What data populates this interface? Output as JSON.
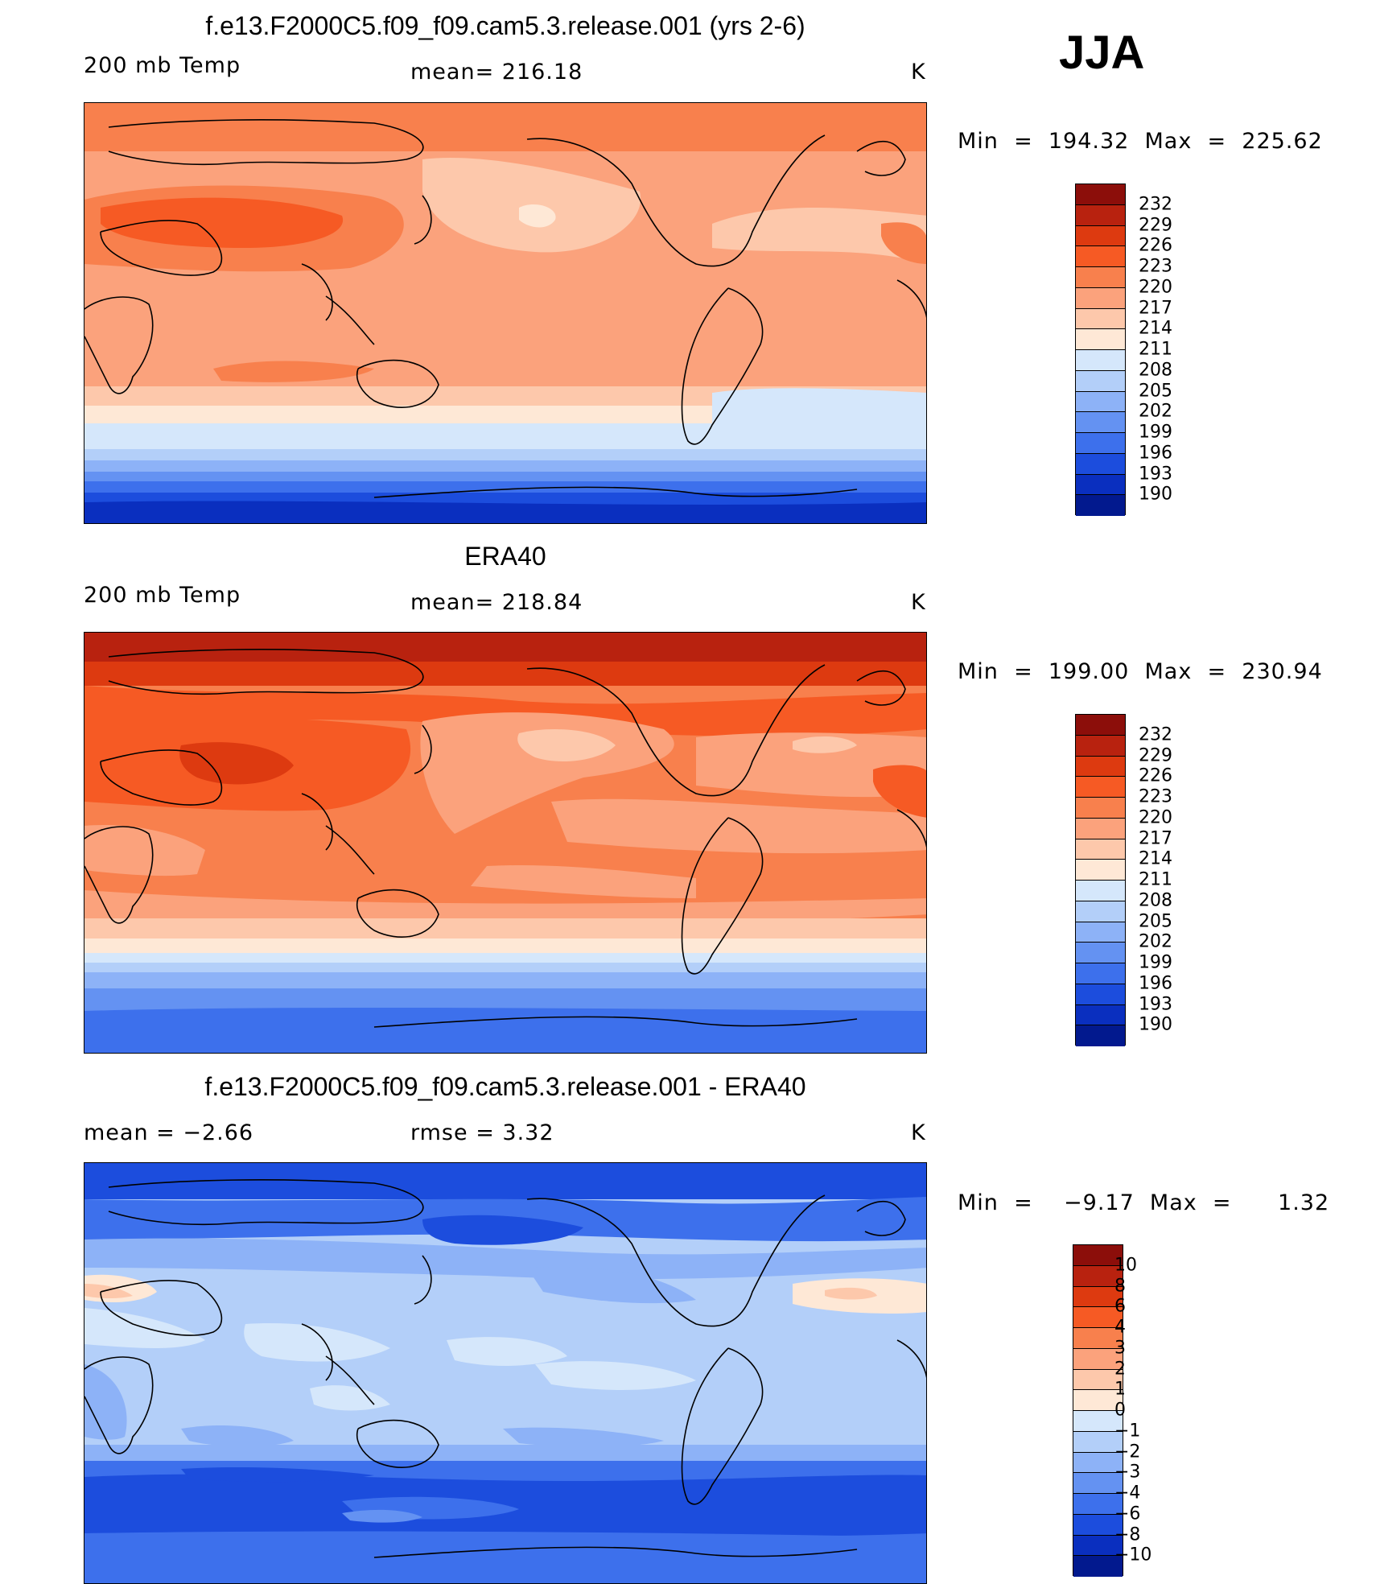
{
  "season_label": "JJA",
  "panels": [
    {
      "title": "f.e13.F2000C5.f09_f09.cam5.3.release.001 (yrs 2-6)",
      "left_label": "200 mb Temp",
      "center_label": "mean= 216.18",
      "right_label": "K",
      "minmax": "Min  =  194.32  Max  =  225.62",
      "colorbar_labels": [
        "232",
        "229",
        "226",
        "223",
        "220",
        "217",
        "214",
        "211",
        "208",
        "205",
        "202",
        "199",
        "196",
        "193",
        "190"
      ]
    },
    {
      "title": "ERA40",
      "left_label": "200 mb Temp",
      "center_label": "mean= 218.84",
      "right_label": "K",
      "minmax": "Min  =  199.00  Max  =  230.94",
      "colorbar_labels": [
        "232",
        "229",
        "226",
        "223",
        "220",
        "217",
        "214",
        "211",
        "208",
        "205",
        "202",
        "199",
        "196",
        "193",
        "190"
      ]
    },
    {
      "title": "f.e13.F2000C5.f09_f09.cam5.3.release.001 - ERA40",
      "left_label": "mean  =    −2.66",
      "center_label": "rmse  =     3.32",
      "right_label": "K",
      "minmax": "Min  =    −9.17  Max  =      1.32",
      "colorbar_labels": [
        "10",
        "8",
        "6",
        "4",
        "3",
        "2",
        "1",
        "0",
        "−1",
        "−2",
        "−3",
        "−4",
        "−6",
        "−8",
        "−10"
      ]
    }
  ],
  "colorbar_palette": [
    "#8c0e0a",
    "#b8220f",
    "#dd3a10",
    "#f65a24",
    "#f8804d",
    "#fba27c",
    "#fdc8ab",
    "#fee8d6",
    "#d5e7fb",
    "#b3cff9",
    "#8db2f7",
    "#6492f2",
    "#3d70ec",
    "#1c4ddd",
    "#0a2fbf",
    "#02198e"
  ],
  "chart_data": [
    {
      "type": "heatmap",
      "title": "f.e13.F2000C5.f09_f09.cam5.3.release.001 (yrs 2-6)",
      "variable": "200 mb Temp",
      "units": "K",
      "mean": 216.18,
      "min": 194.32,
      "max": 225.62,
      "levels": [
        190,
        193,
        196,
        199,
        202,
        205,
        208,
        211,
        214,
        217,
        220,
        223,
        226,
        229,
        232
      ],
      "lat_bands": [
        {
          "lat": 75,
          "value": 224
        },
        {
          "lat": 45,
          "value": 219
        },
        {
          "lat": 30,
          "value": 223
        },
        {
          "lat": 0,
          "value": 220
        },
        {
          "lat": -30,
          "value": 219
        },
        {
          "lat": -45,
          "value": 212
        },
        {
          "lat": -55,
          "value": 206
        },
        {
          "lat": -65,
          "value": 197
        },
        {
          "lat": -80,
          "value": 194
        }
      ]
    },
    {
      "type": "heatmap",
      "title": "ERA40",
      "variable": "200 mb Temp",
      "units": "K",
      "mean": 218.84,
      "min": 199.0,
      "max": 230.94,
      "levels": [
        190,
        193,
        196,
        199,
        202,
        205,
        208,
        211,
        214,
        217,
        220,
        223,
        226,
        229,
        232
      ],
      "lat_bands": [
        {
          "lat": 80,
          "value": 230
        },
        {
          "lat": 60,
          "value": 226
        },
        {
          "lat": 45,
          "value": 221
        },
        {
          "lat": 30,
          "value": 226
        },
        {
          "lat": 0,
          "value": 223
        },
        {
          "lat": -30,
          "value": 220
        },
        {
          "lat": -45,
          "value": 215
        },
        {
          "lat": -55,
          "value": 211
        },
        {
          "lat": -65,
          "value": 205
        },
        {
          "lat": -80,
          "value": 201
        }
      ]
    },
    {
      "type": "heatmap",
      "title": "f.e13.F2000C5.f09_f09.cam5.3.release.001 - ERA40",
      "variable": "difference",
      "units": "K",
      "mean": -2.66,
      "rmse": 3.32,
      "min": -9.17,
      "max": 1.32,
      "levels": [
        -10,
        -8,
        -6,
        -4,
        -3,
        -2,
        -1,
        0,
        1,
        2,
        3,
        4,
        6,
        8,
        10
      ],
      "lat_bands": [
        {
          "lat": 80,
          "value": -6
        },
        {
          "lat": 65,
          "value": -4
        },
        {
          "lat": 45,
          "value": -2.5
        },
        {
          "lat": 30,
          "value": -1.5
        },
        {
          "lat": 0,
          "value": -1.8
        },
        {
          "lat": -30,
          "value": -2.5
        },
        {
          "lat": -45,
          "value": -4.5
        },
        {
          "lat": -60,
          "value": -6
        },
        {
          "lat": -75,
          "value": -5
        }
      ]
    }
  ]
}
